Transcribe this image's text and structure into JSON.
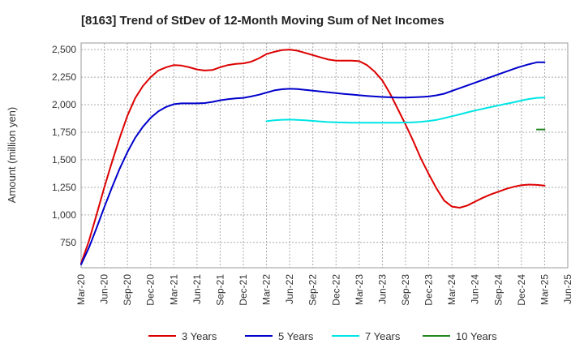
{
  "chart_data": {
    "type": "line",
    "title": "[8163]  Trend of StDev of 12-Month Moving Sum of Net Incomes",
    "xlabel": "",
    "ylabel": "Amount (million yen)",
    "ylim": [
      520,
      2560
    ],
    "yticks": [
      750,
      1000,
      1250,
      1500,
      1750,
      2000,
      2250,
      2500
    ],
    "ytick_labels": [
      "750",
      "1,000",
      "1,250",
      "1,500",
      "1,750",
      "2,000",
      "2,250",
      "2,500"
    ],
    "x_range": [
      "2020-03",
      "2025-06"
    ],
    "xtick_labels": [
      "Mar-20",
      "Jun-20",
      "Sep-20",
      "Dec-20",
      "Mar-21",
      "Jun-21",
      "Sep-21",
      "Dec-21",
      "Mar-22",
      "Jun-22",
      "Sep-22",
      "Dec-22",
      "Mar-23",
      "Jun-23",
      "Sep-23",
      "Dec-23",
      "Mar-24",
      "Jun-24",
      "Sep-24",
      "Dec-24",
      "Mar-25",
      "Jun-25"
    ],
    "grid": true,
    "legend_position": "bottom",
    "series": [
      {
        "name": "3 Years",
        "color": "#dd0000",
        "x": [
          "2020-03",
          "2020-04",
          "2020-05",
          "2020-06",
          "2020-07",
          "2020-08",
          "2020-09",
          "2020-10",
          "2020-11",
          "2020-12",
          "2021-01",
          "2021-02",
          "2021-03",
          "2021-04",
          "2021-05",
          "2021-06",
          "2021-07",
          "2021-08",
          "2021-09",
          "2021-10",
          "2021-11",
          "2021-12",
          "2022-01",
          "2022-02",
          "2022-03",
          "2022-04",
          "2022-05",
          "2022-06",
          "2022-07",
          "2022-08",
          "2022-09",
          "2022-10",
          "2022-11",
          "2022-12",
          "2023-01",
          "2023-02",
          "2023-03",
          "2023-04",
          "2023-05",
          "2023-06",
          "2023-07",
          "2023-08",
          "2023-09",
          "2023-10",
          "2023-11",
          "2023-12",
          "2024-01",
          "2024-02",
          "2024-03",
          "2024-04",
          "2024-05",
          "2024-06",
          "2024-07",
          "2024-08",
          "2024-09",
          "2024-10",
          "2024-11",
          "2024-12",
          "2025-01",
          "2025-02",
          "2025-03"
        ],
        "values": [
          560,
          760,
          1000,
          1250,
          1480,
          1700,
          1900,
          2060,
          2170,
          2250,
          2310,
          2340,
          2360,
          2355,
          2340,
          2320,
          2310,
          2315,
          2340,
          2360,
          2370,
          2375,
          2390,
          2420,
          2460,
          2480,
          2495,
          2500,
          2490,
          2470,
          2450,
          2430,
          2410,
          2400,
          2400,
          2400,
          2395,
          2360,
          2300,
          2220,
          2100,
          1960,
          1820,
          1670,
          1510,
          1370,
          1240,
          1130,
          1075,
          1065,
          1085,
          1120,
          1155,
          1185,
          1210,
          1235,
          1255,
          1270,
          1275,
          1272,
          1265
        ]
      },
      {
        "name": "5 Years",
        "color": "#0000cc",
        "x": [
          "2020-03",
          "2020-04",
          "2020-05",
          "2020-06",
          "2020-07",
          "2020-08",
          "2020-09",
          "2020-10",
          "2020-11",
          "2020-12",
          "2021-01",
          "2021-02",
          "2021-03",
          "2021-04",
          "2021-05",
          "2021-06",
          "2021-07",
          "2021-08",
          "2021-09",
          "2021-10",
          "2021-11",
          "2021-12",
          "2022-01",
          "2022-02",
          "2022-03",
          "2022-04",
          "2022-05",
          "2022-06",
          "2022-07",
          "2022-08",
          "2022-09",
          "2022-10",
          "2022-11",
          "2022-12",
          "2023-01",
          "2023-02",
          "2023-03",
          "2023-04",
          "2023-05",
          "2023-06",
          "2023-07",
          "2023-08",
          "2023-09",
          "2023-10",
          "2023-11",
          "2023-12",
          "2024-01",
          "2024-02",
          "2024-03",
          "2024-04",
          "2024-05",
          "2024-06",
          "2024-07",
          "2024-08",
          "2024-09",
          "2024-10",
          "2024-11",
          "2024-12",
          "2025-01",
          "2025-02",
          "2025-03"
        ],
        "values": [
          550,
          700,
          880,
          1070,
          1250,
          1420,
          1570,
          1700,
          1800,
          1880,
          1940,
          1980,
          2005,
          2012,
          2012,
          2012,
          2015,
          2025,
          2040,
          2050,
          2058,
          2062,
          2075,
          2090,
          2110,
          2130,
          2140,
          2145,
          2142,
          2135,
          2128,
          2120,
          2112,
          2105,
          2098,
          2092,
          2086,
          2080,
          2075,
          2070,
          2067,
          2065,
          2065,
          2067,
          2070,
          2075,
          2085,
          2100,
          2125,
          2150,
          2175,
          2200,
          2225,
          2250,
          2275,
          2300,
          2325,
          2348,
          2368,
          2385,
          2385
        ]
      },
      {
        "name": "7 Years",
        "color": "#00e5e5",
        "x": [
          "2022-03",
          "2022-04",
          "2022-05",
          "2022-06",
          "2022-07",
          "2022-08",
          "2022-09",
          "2022-10",
          "2022-11",
          "2022-12",
          "2023-01",
          "2023-02",
          "2023-03",
          "2023-04",
          "2023-05",
          "2023-06",
          "2023-07",
          "2023-08",
          "2023-09",
          "2023-10",
          "2023-11",
          "2023-12",
          "2024-01",
          "2024-02",
          "2024-03",
          "2024-04",
          "2024-05",
          "2024-06",
          "2024-07",
          "2024-08",
          "2024-09",
          "2024-10",
          "2024-11",
          "2024-12",
          "2025-01",
          "2025-02",
          "2025-03"
        ],
        "values": [
          1850,
          1858,
          1863,
          1865,
          1862,
          1858,
          1853,
          1848,
          1843,
          1840,
          1838,
          1837,
          1837,
          1837,
          1837,
          1837,
          1837,
          1837,
          1838,
          1840,
          1845,
          1852,
          1862,
          1878,
          1895,
          1912,
          1930,
          1947,
          1963,
          1978,
          1993,
          2008,
          2022,
          2038,
          2052,
          2062,
          2065
        ]
      },
      {
        "name": "10 Years",
        "color": "#228822",
        "x": [
          "2025-02",
          "2025-03"
        ],
        "values": [
          1775,
          1775
        ]
      }
    ]
  }
}
